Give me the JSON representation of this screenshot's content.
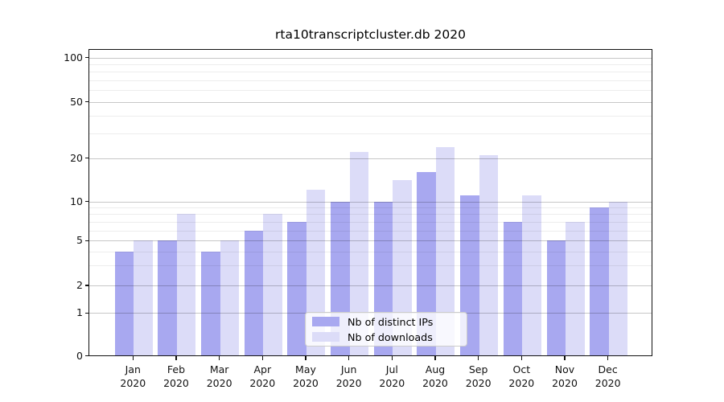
{
  "chart_data": {
    "type": "bar",
    "title": "rta10transcriptcluster.db 2020",
    "categories": [
      "Jan",
      "Feb",
      "Mar",
      "Apr",
      "May",
      "Jun",
      "Jul",
      "Aug",
      "Sep",
      "Oct",
      "Nov",
      "Dec"
    ],
    "year_suffix": "2020",
    "series": [
      {
        "name": "Nb of distinct IPs",
        "color": "#a8a8f0",
        "values": [
          4,
          5,
          4,
          6,
          7,
          10,
          10,
          16,
          11,
          7,
          5,
          9
        ]
      },
      {
        "name": "Nb of downloads",
        "color": "#dcdcf8",
        "values": [
          5,
          8,
          5,
          8,
          12,
          22,
          14,
          24,
          21,
          11,
          7,
          10
        ]
      }
    ],
    "yaxis": {
      "scale": "symlog (linear 0-1, log above)",
      "ylim": [
        0,
        115
      ],
      "major_ticks": [
        0,
        1,
        2,
        5,
        10,
        20,
        50,
        100
      ],
      "tick_labels": [
        "0",
        "1",
        "2",
        "5",
        "10",
        "20",
        "50",
        "100"
      ],
      "minor_gridlines": [
        3,
        4,
        6,
        7,
        8,
        9,
        30,
        40,
        60,
        70,
        80,
        90
      ]
    },
    "xlabel": "",
    "ylabel": "",
    "grid": {
      "horizontal": true,
      "drawn_over_bars": true
    },
    "legend": {
      "position": "lower-center"
    }
  }
}
